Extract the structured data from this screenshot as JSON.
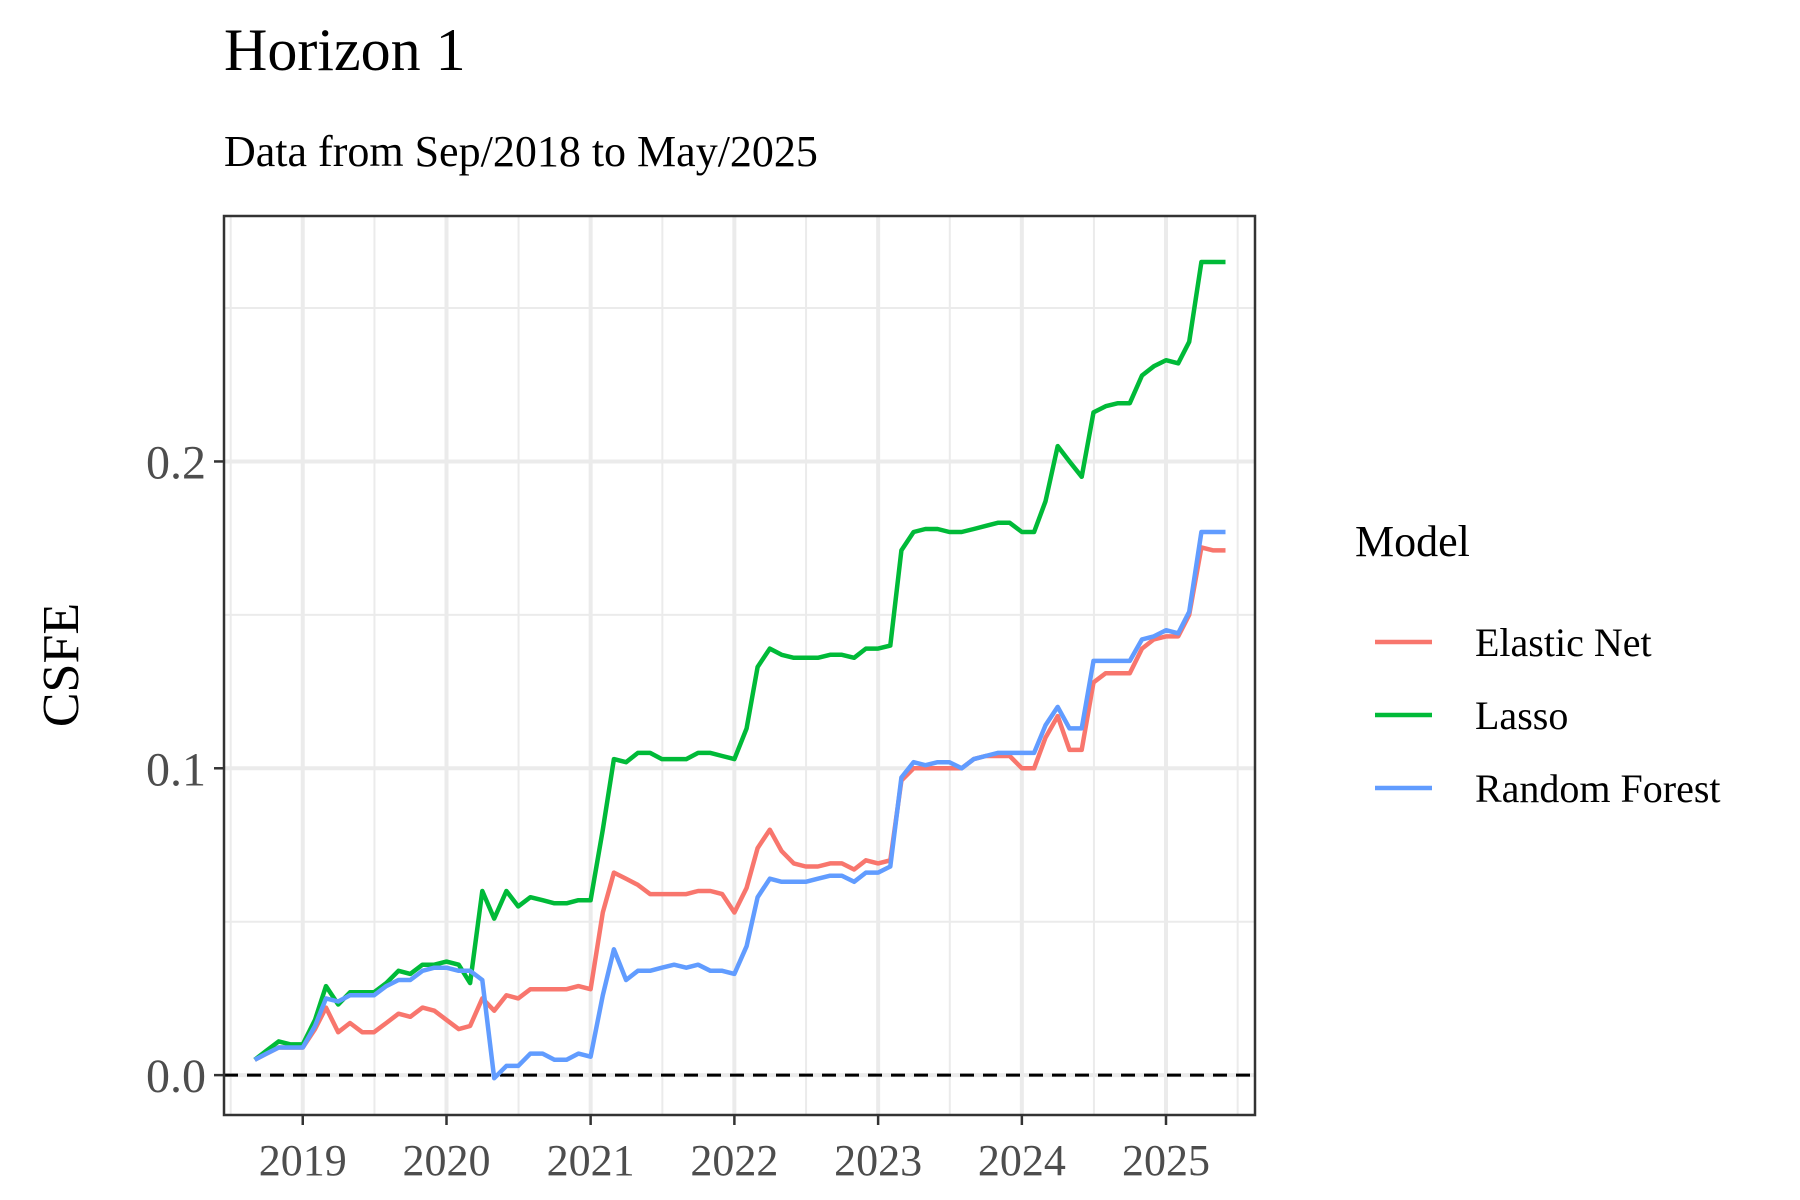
{
  "chart_data": {
    "type": "line",
    "title": "Horizon 1",
    "subtitle": "Data from Sep/2018 to May/2025",
    "xlabel": "",
    "ylabel": "CSFE",
    "xlim": [
      "2018-06-15",
      "2025-08-15"
    ],
    "ylim": [
      -0.013,
      0.28
    ],
    "x_ticks": [
      "2019",
      "2020",
      "2021",
      "2022",
      "2023",
      "2024",
      "2025"
    ],
    "y_ticks": [
      {
        "value": 0.0,
        "label": "0.0"
      },
      {
        "value": 0.1,
        "label": "0.1"
      },
      {
        "value": 0.2,
        "label": "0.2"
      }
    ],
    "y_minor_ticks": [
      0.05,
      0.15,
      0.25
    ],
    "reference_line": {
      "y": 0.0,
      "style": "dashed",
      "color": "#000000"
    },
    "grid": true,
    "legend": {
      "title": "Model",
      "placement": "right"
    },
    "x_start": "2018-09",
    "series": [
      {
        "name": "Elastic Net",
        "color": "#F8766D",
        "values": [
          0.005,
          0.007,
          0.009,
          0.009,
          0.009,
          0.015,
          0.022,
          0.014,
          0.017,
          0.014,
          0.014,
          0.017,
          0.02,
          0.019,
          0.022,
          0.021,
          0.018,
          0.015,
          0.016,
          0.025,
          0.021,
          0.026,
          0.025,
          0.028,
          0.028,
          0.028,
          0.028,
          0.029,
          0.028,
          0.053,
          0.066,
          0.064,
          0.062,
          0.059,
          0.059,
          0.059,
          0.059,
          0.06,
          0.06,
          0.059,
          0.053,
          0.061,
          0.074,
          0.08,
          0.073,
          0.069,
          0.068,
          0.068,
          0.069,
          0.069,
          0.067,
          0.07,
          0.069,
          0.07,
          0.096,
          0.1,
          0.1,
          0.1,
          0.1,
          0.1,
          0.103,
          0.104,
          0.104,
          0.104,
          0.1,
          0.1,
          0.11,
          0.117,
          0.106,
          0.106,
          0.128,
          0.131,
          0.131,
          0.131,
          0.139,
          0.142,
          0.143,
          0.143,
          0.15,
          0.172,
          0.171,
          0.171
        ]
      },
      {
        "name": "Lasso",
        "color": "#00BA38",
        "values": [
          0.005,
          0.008,
          0.011,
          0.01,
          0.01,
          0.018,
          0.029,
          0.023,
          0.027,
          0.027,
          0.027,
          0.03,
          0.034,
          0.033,
          0.036,
          0.036,
          0.037,
          0.036,
          0.03,
          0.06,
          0.051,
          0.06,
          0.055,
          0.058,
          0.057,
          0.056,
          0.056,
          0.057,
          0.057,
          0.08,
          0.103,
          0.102,
          0.105,
          0.105,
          0.103,
          0.103,
          0.103,
          0.105,
          0.105,
          0.104,
          0.103,
          0.113,
          0.133,
          0.139,
          0.137,
          0.136,
          0.136,
          0.136,
          0.137,
          0.137,
          0.136,
          0.139,
          0.139,
          0.14,
          0.171,
          0.177,
          0.178,
          0.178,
          0.177,
          0.177,
          0.178,
          0.179,
          0.18,
          0.18,
          0.177,
          0.177,
          0.187,
          0.205,
          0.2,
          0.195,
          0.216,
          0.218,
          0.219,
          0.219,
          0.228,
          0.231,
          0.233,
          0.232,
          0.239,
          0.265,
          0.265,
          0.265
        ]
      },
      {
        "name": "Random Forest",
        "color": "#619CFF",
        "values": [
          0.005,
          0.007,
          0.009,
          0.009,
          0.009,
          0.016,
          0.025,
          0.024,
          0.026,
          0.026,
          0.026,
          0.029,
          0.031,
          0.031,
          0.034,
          0.035,
          0.035,
          0.034,
          0.034,
          0.031,
          -0.001,
          0.003,
          0.003,
          0.007,
          0.007,
          0.005,
          0.005,
          0.007,
          0.006,
          0.026,
          0.041,
          0.031,
          0.034,
          0.034,
          0.035,
          0.036,
          0.035,
          0.036,
          0.034,
          0.034,
          0.033,
          0.042,
          0.058,
          0.064,
          0.063,
          0.063,
          0.063,
          0.064,
          0.065,
          0.065,
          0.063,
          0.066,
          0.066,
          0.068,
          0.097,
          0.102,
          0.101,
          0.102,
          0.102,
          0.1,
          0.103,
          0.104,
          0.105,
          0.105,
          0.105,
          0.105,
          0.114,
          0.12,
          0.113,
          0.113,
          0.135,
          0.135,
          0.135,
          0.135,
          0.142,
          0.143,
          0.145,
          0.144,
          0.151,
          0.177,
          0.177,
          0.177
        ]
      }
    ]
  }
}
